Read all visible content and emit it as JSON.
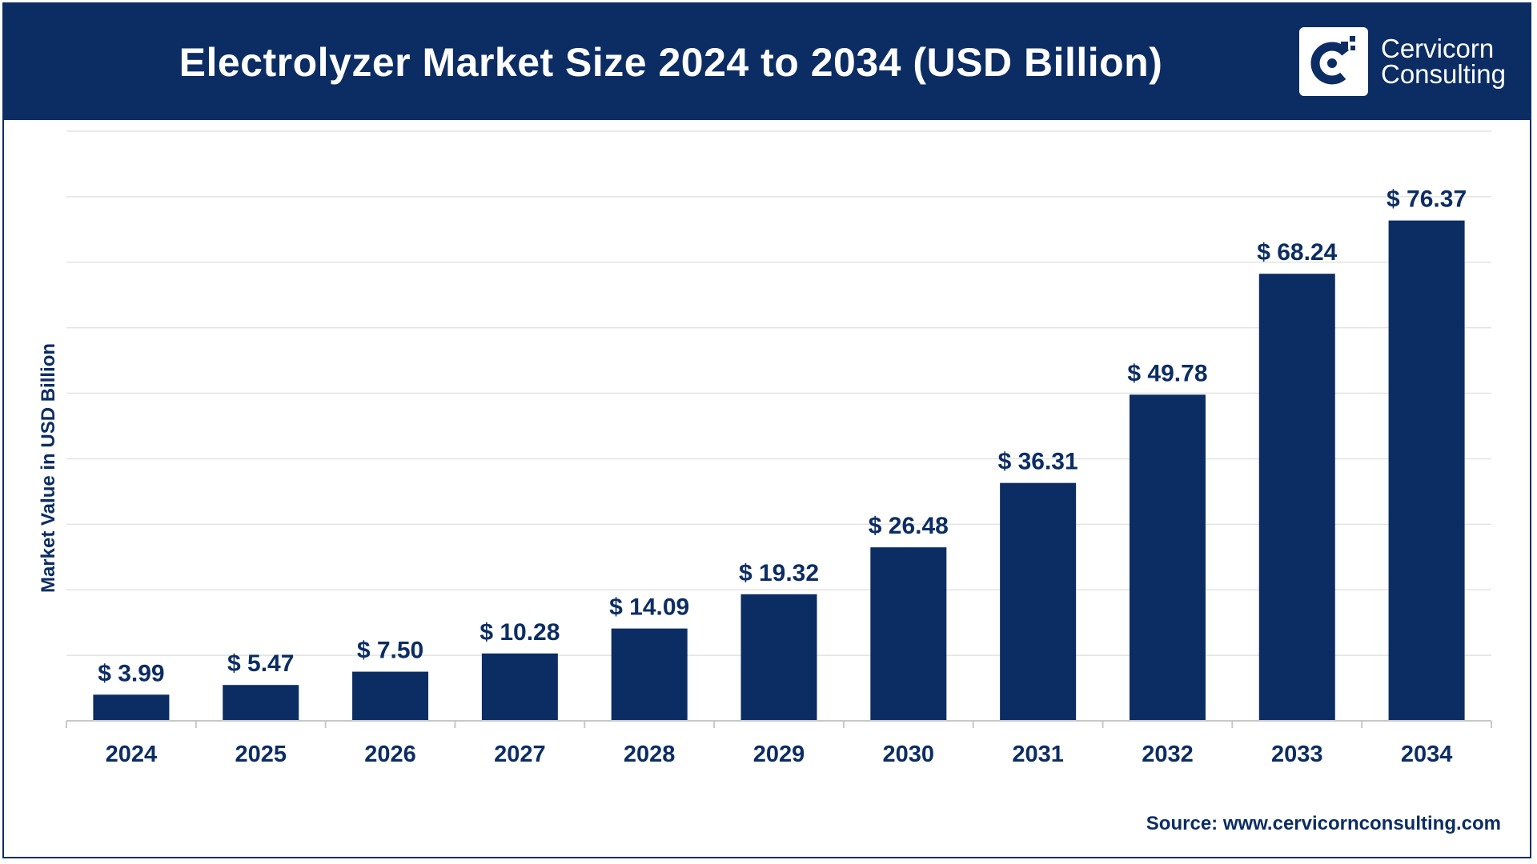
{
  "header": {
    "title": "Electrolyzer Market Size 2024 to 2034 (USD Billion)",
    "logo_line1": "Cervicorn",
    "logo_line2": "Consulting",
    "logo_icon": "cervicorn-c-icon"
  },
  "footer": {
    "source": "Source: www.cervicornconsulting.com"
  },
  "colors": {
    "bar": "#0c2d63",
    "header_bg": "#0c2d63",
    "gridline": "#e3e3e3",
    "text": "#0c2d63"
  },
  "chart_data": {
    "type": "bar",
    "title": "Electrolyzer Market Size 2024 to 2034 (USD Billion)",
    "xlabel": "",
    "ylabel": "Market Value in USD Billion",
    "categories": [
      "2024",
      "2025",
      "2026",
      "2027",
      "2028",
      "2029",
      "2030",
      "2031",
      "2032",
      "2033",
      "2034"
    ],
    "values": [
      3.99,
      5.47,
      7.5,
      10.28,
      14.09,
      19.32,
      26.48,
      36.31,
      49.78,
      68.24,
      76.37
    ],
    "data_labels": [
      "$ 3.99",
      "$ 5.47",
      "$ 7.50",
      "$ 10.28",
      "$ 14.09",
      "$ 19.32",
      "$ 26.48",
      "$ 36.31",
      "$ 49.78",
      "$ 68.24",
      "$ 76.37"
    ],
    "ylim": [
      0,
      90
    ],
    "grid": true,
    "legend": "none"
  }
}
